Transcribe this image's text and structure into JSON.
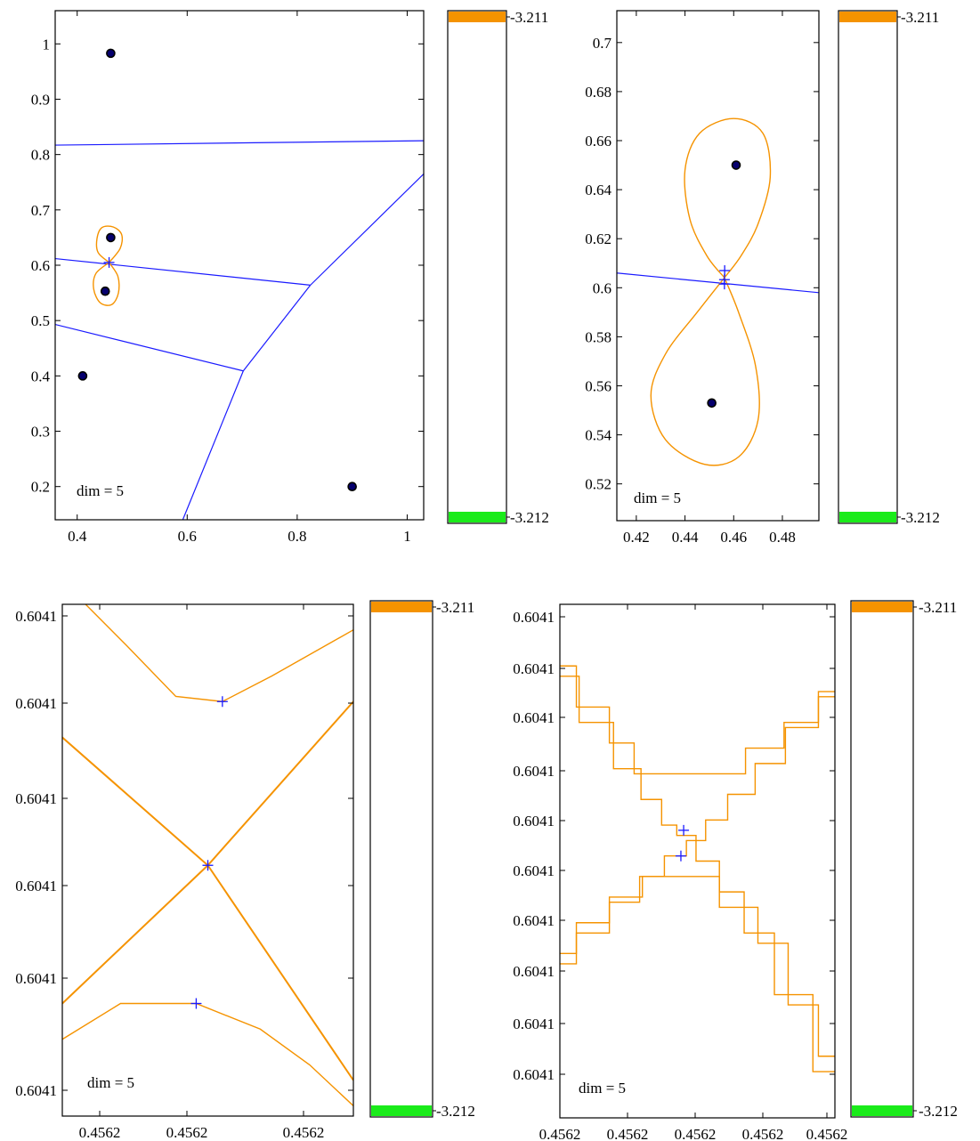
{
  "colors": {
    "contour": "#f59300",
    "voronoi": "#1a1aff",
    "point_fill": "#06006e",
    "colorbar_high": "#f59300",
    "colorbar_low": "#1aeb1a",
    "saddle_mark": "#1a1aff"
  },
  "chart_data": [
    {
      "type": "scatter",
      "annotation": "dim = 5",
      "xlim": [
        0.36,
        1.03
      ],
      "ylim": [
        0.14,
        1.06
      ],
      "x_ticks": [
        0.4,
        0.6,
        0.8,
        1
      ],
      "x_tick_labels": [
        "0.4",
        "0.6",
        "0.8",
        "1"
      ],
      "y_ticks": [
        0.2,
        0.3,
        0.4,
        0.5,
        0.6,
        0.7,
        0.8,
        0.9,
        1
      ],
      "y_tick_labels": [
        "0.2",
        "0.3",
        "0.4",
        "0.5",
        "0.6",
        "0.7",
        "0.8",
        "0.9",
        "1"
      ],
      "points": [
        [
          0.461,
          0.983
        ],
        [
          0.461,
          0.65
        ],
        [
          0.451,
          0.553
        ],
        [
          0.41,
          0.4
        ],
        [
          0.9,
          0.2
        ]
      ],
      "markers": [
        [
          0.458,
          0.605
        ]
      ],
      "voronoi_edges": [
        [
          [
            0.36,
            0.817
          ],
          [
            1.03,
            0.825
          ]
        ],
        [
          [
            0.36,
            0.612
          ],
          [
            0.824,
            0.564
          ]
        ],
        [
          [
            0.824,
            0.564
          ],
          [
            1.03,
            0.765
          ]
        ],
        [
          [
            0.824,
            0.564
          ],
          [
            0.702,
            0.409
          ]
        ],
        [
          [
            0.36,
            0.493
          ],
          [
            0.702,
            0.409
          ]
        ],
        [
          [
            0.702,
            0.409
          ],
          [
            0.592,
            0.14
          ]
        ]
      ],
      "contours": [
        [
          [
            0.458,
            0.605
          ],
          [
            0.438,
            0.623
          ],
          [
            0.436,
            0.648
          ],
          [
            0.445,
            0.668
          ],
          [
            0.466,
            0.669
          ],
          [
            0.481,
            0.655
          ],
          [
            0.478,
            0.63
          ],
          [
            0.458,
            0.605
          ]
        ],
        [
          [
            0.458,
            0.605
          ],
          [
            0.434,
            0.585
          ],
          [
            0.43,
            0.557
          ],
          [
            0.442,
            0.532
          ],
          [
            0.463,
            0.529
          ],
          [
            0.475,
            0.55
          ],
          [
            0.474,
            0.58
          ],
          [
            0.458,
            0.605
          ]
        ]
      ],
      "colorbar": {
        "max_label": "-3.211",
        "min_label": "-3.212"
      }
    },
    {
      "type": "scatter",
      "annotation": "dim = 5",
      "xlim": [
        0.412,
        0.495
      ],
      "ylim": [
        0.505,
        0.713
      ],
      "x_ticks": [
        0.42,
        0.44,
        0.46,
        0.48
      ],
      "x_tick_labels": [
        "0.42",
        "0.44",
        "0.46",
        "0.48"
      ],
      "y_ticks": [
        0.52,
        0.54,
        0.56,
        0.58,
        0.6,
        0.62,
        0.64,
        0.66,
        0.68,
        0.7
      ],
      "y_tick_labels": [
        "0.52",
        "0.54",
        "0.56",
        "0.58",
        "0.6",
        "0.62",
        "0.64",
        "0.66",
        "0.68",
        "0.7"
      ],
      "points": [
        [
          0.461,
          0.65
        ],
        [
          0.451,
          0.553
        ]
      ],
      "markers": [
        [
          0.4563,
          0.607
        ],
        [
          0.4562,
          0.6033
        ],
        [
          0.4562,
          0.6015
        ]
      ],
      "voronoi_edges": [
        [
          [
            0.412,
            0.606
          ],
          [
            0.495,
            0.598
          ]
        ]
      ],
      "contours": [
        [
          [
            0.4562,
            0.6041
          ],
          [
            0.449,
            0.613
          ],
          [
            0.442,
            0.628
          ],
          [
            0.44,
            0.648
          ],
          [
            0.446,
            0.663
          ],
          [
            0.46,
            0.669
          ],
          [
            0.472,
            0.663
          ],
          [
            0.475,
            0.645
          ],
          [
            0.47,
            0.626
          ],
          [
            0.463,
            0.613
          ],
          [
            0.4562,
            0.6041
          ]
        ],
        [
          [
            0.4562,
            0.6041
          ],
          [
            0.445,
            0.59
          ],
          [
            0.432,
            0.573
          ],
          [
            0.426,
            0.556
          ],
          [
            0.432,
            0.538
          ],
          [
            0.448,
            0.528
          ],
          [
            0.462,
            0.531
          ],
          [
            0.47,
            0.546
          ],
          [
            0.469,
            0.568
          ],
          [
            0.462,
            0.59
          ],
          [
            0.4562,
            0.6041
          ]
        ]
      ],
      "colorbar": {
        "max_label": "-3.211",
        "min_label": "-3.212"
      }
    },
    {
      "type": "scatter",
      "annotation": "dim = 5",
      "x_tick_labels": [
        "0.4562",
        "0.4562",
        "0.4562"
      ],
      "y_tick_labels": [
        "0.6041",
        "0.6041",
        "0.6041",
        "0.6041",
        "0.6041",
        "0.6041"
      ],
      "markers": [
        [
          0.55,
          0.81
        ],
        [
          0.5,
          0.49
        ],
        [
          0.46,
          0.22
        ]
      ],
      "contours": [
        [
          [
            0.08,
            1.0
          ],
          [
            0.22,
            0.92
          ],
          [
            0.39,
            0.82
          ],
          [
            0.55,
            0.81
          ],
          [
            0.72,
            0.86
          ],
          [
            1.0,
            0.95
          ]
        ],
        [
          [
            0.0,
            0.15
          ],
          [
            0.2,
            0.22
          ],
          [
            0.46,
            0.22
          ],
          [
            0.68,
            0.17
          ],
          [
            0.85,
            0.1
          ],
          [
            1.0,
            0.02
          ]
        ],
        [
          [
            0.0,
            0.74
          ],
          [
            0.5,
            0.49
          ],
          [
            1.0,
            0.07
          ]
        ],
        [
          [
            0.0,
            0.22
          ],
          [
            0.5,
            0.49
          ],
          [
            1.0,
            0.81
          ]
        ]
      ],
      "colorbar": {
        "max_label": "-3.211",
        "min_label": "-3.212"
      }
    },
    {
      "type": "scatter",
      "annotation": "dim = 5",
      "x_tick_labels": [
        "0.4562",
        "0.4562",
        "0.4562",
        "0.4562",
        "0.4562"
      ],
      "y_tick_labels": [
        "0.6041",
        "0.6041",
        "0.6041",
        "0.6041",
        "0.6041",
        "0.6041",
        "0.6041",
        "0.6041",
        "0.6041",
        "0.6041"
      ],
      "markers": [
        [
          0.45,
          0.56
        ],
        [
          0.44,
          0.51
        ]
      ],
      "contours": [
        [
          [
            0.0,
            0.88
          ],
          [
            0.12,
            0.8
          ],
          [
            0.24,
            0.73
          ],
          [
            0.3,
            0.67
          ],
          [
            0.6,
            0.67
          ],
          [
            0.75,
            0.72
          ],
          [
            0.88,
            0.77
          ],
          [
            1.0,
            0.83
          ]
        ],
        [
          [
            0.0,
            0.32
          ],
          [
            0.12,
            0.38
          ],
          [
            0.24,
            0.43
          ],
          [
            0.36,
            0.47
          ],
          [
            0.5,
            0.47
          ],
          [
            0.66,
            0.41
          ],
          [
            0.78,
            0.34
          ],
          [
            0.88,
            0.22
          ],
          [
            1.0,
            0.12
          ]
        ],
        [
          [
            0.0,
            0.86
          ],
          [
            0.14,
            0.77
          ],
          [
            0.25,
            0.68
          ],
          [
            0.34,
            0.62
          ],
          [
            0.4,
            0.57
          ],
          [
            0.45,
            0.55
          ],
          [
            0.54,
            0.5
          ],
          [
            0.62,
            0.44
          ],
          [
            0.72,
            0.36
          ],
          [
            0.84,
            0.24
          ],
          [
            1.0,
            0.09
          ]
        ],
        [
          [
            0.0,
            0.3
          ],
          [
            0.12,
            0.36
          ],
          [
            0.24,
            0.42
          ],
          [
            0.34,
            0.47
          ],
          [
            0.42,
            0.51
          ],
          [
            0.5,
            0.54
          ],
          [
            0.56,
            0.58
          ],
          [
            0.66,
            0.63
          ],
          [
            0.76,
            0.69
          ],
          [
            0.88,
            0.76
          ],
          [
            1.0,
            0.82
          ]
        ]
      ],
      "colorbar": {
        "max_label": "-3.211",
        "min_label": "-3.212"
      }
    }
  ]
}
